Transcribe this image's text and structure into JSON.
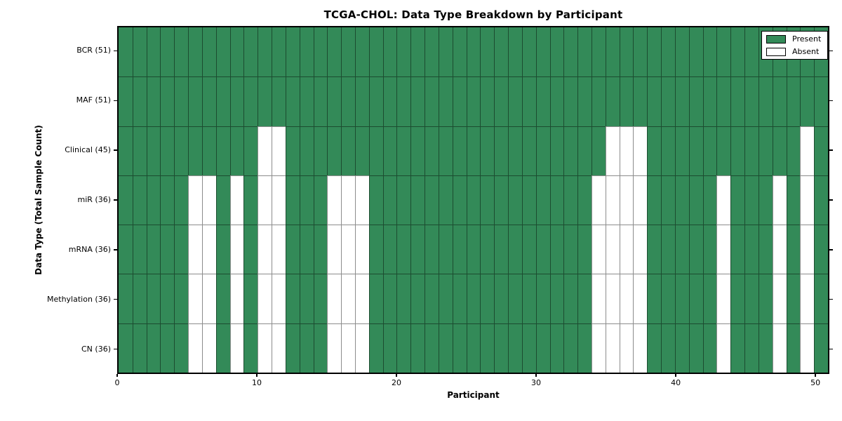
{
  "chart_data": {
    "type": "heatmap",
    "title": "TCGA-CHOL: Data Type Breakdown by Participant",
    "xlabel": "Participant",
    "ylabel": "Data Type (Total Sample Count)",
    "participants": 51,
    "xlim": [
      0,
      51
    ],
    "x_ticks": [
      0,
      10,
      20,
      30,
      40,
      50
    ],
    "grid": "cell-borders",
    "legend": {
      "position": "upper-right",
      "entries": [
        {
          "label": "Present",
          "state": "present"
        },
        {
          "label": "Absent",
          "state": "absent"
        }
      ]
    },
    "colors": {
      "present": "#338a58",
      "absent": "#ffffff"
    },
    "rows": [
      {
        "label": "BCR (51)",
        "data_type": "BCR",
        "total_samples": 51,
        "absent_participants": []
      },
      {
        "label": "MAF (51)",
        "data_type": "MAF",
        "total_samples": 51,
        "absent_participants": []
      },
      {
        "label": "Clinical (45)",
        "data_type": "Clinical",
        "total_samples": 45,
        "absent_participants": [
          10,
          11,
          35,
          36,
          37,
          49
        ]
      },
      {
        "label": "miR (36)",
        "data_type": "miR",
        "total_samples": 36,
        "absent_participants": [
          5,
          6,
          8,
          10,
          11,
          15,
          16,
          17,
          34,
          35,
          36,
          37,
          43,
          47,
          49
        ]
      },
      {
        "label": "mRNA (36)",
        "data_type": "mRNA",
        "total_samples": 36,
        "absent_participants": [
          5,
          6,
          8,
          10,
          11,
          15,
          16,
          17,
          34,
          35,
          36,
          37,
          43,
          47,
          49
        ]
      },
      {
        "label": "Methylation (36)",
        "data_type": "Methylation",
        "total_samples": 36,
        "absent_participants": [
          5,
          6,
          8,
          10,
          11,
          15,
          16,
          17,
          34,
          35,
          36,
          37,
          43,
          47,
          49
        ]
      },
      {
        "label": "CN (36)",
        "data_type": "CN",
        "total_samples": 36,
        "absent_participants": [
          5,
          6,
          8,
          10,
          11,
          15,
          16,
          17,
          34,
          35,
          36,
          37,
          43,
          47,
          49
        ]
      }
    ]
  }
}
